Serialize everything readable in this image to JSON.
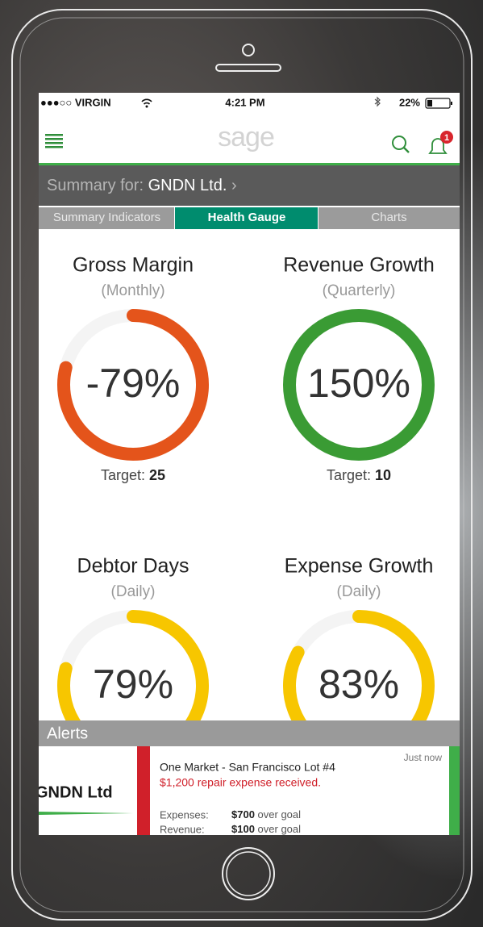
{
  "status_bar": {
    "carrier": "●●●○○ VIRGIN",
    "time": "4:21 PM",
    "battery": "22%"
  },
  "header": {
    "logo": "sage",
    "badge": "1"
  },
  "summary": {
    "label": "Summary for:",
    "company": "GNDN Ltd.",
    "chevron": "›"
  },
  "tabs": [
    "Summary Indicators",
    "Health Gauge",
    "Charts"
  ],
  "active_tab": 1,
  "gauges": [
    {
      "title": "Gross Margin",
      "period": "(Monthly)",
      "value": -79,
      "value_label": "-79%",
      "color": "#e4541b",
      "target_label": "Target:",
      "target": 25
    },
    {
      "title": "Revenue Growth",
      "period": "(Quarterly)",
      "value": 150,
      "value_label": "150%",
      "color": "#3a9b34",
      "target_label": "Target:",
      "target": 10
    },
    {
      "title": "Debtor Days",
      "period": "(Daily)",
      "value": 79,
      "value_label": "79%",
      "color": "#f7c600"
    },
    {
      "title": "Expense Growth",
      "period": "(Daily)",
      "value": 83,
      "value_label": "83%",
      "color": "#f7c600"
    }
  ],
  "alerts": {
    "title": "Alerts",
    "company": "GNDN Ltd",
    "headline": "One Market - San Francisco Lot #4",
    "message": "$1,200 repair expense received.",
    "time": "Just now",
    "lines": [
      {
        "label": "Expenses:",
        "amount": "$700",
        "note": "over goal"
      },
      {
        "label": "Revenue:",
        "amount": "$100",
        "note": "over goal"
      }
    ]
  }
}
